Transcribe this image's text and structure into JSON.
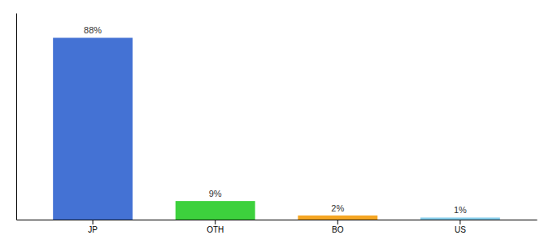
{
  "chart_data": {
    "type": "bar",
    "categories": [
      "JP",
      "OTH",
      "BO",
      "US"
    ],
    "values": [
      88,
      9,
      2,
      1
    ],
    "colors": [
      "#4472d4",
      "#3dd13d",
      "#f5a623",
      "#87ceeb"
    ],
    "data_labels": true,
    "value_labels": [
      "88%",
      "9%",
      "2%",
      "1%"
    ],
    "ylim": [
      0,
      100
    ],
    "grid": false,
    "tick_labels": "x"
  }
}
